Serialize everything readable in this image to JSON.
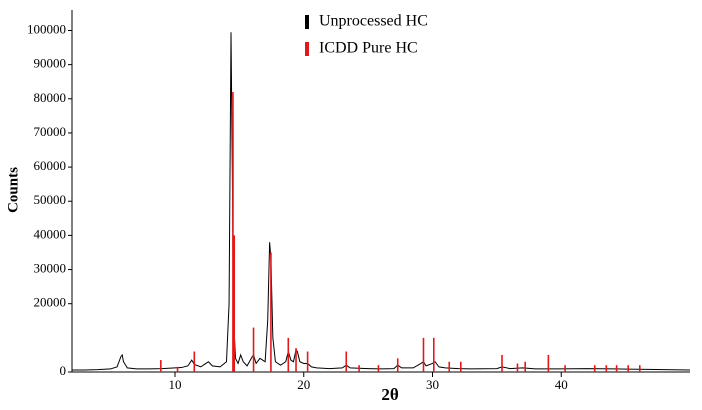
{
  "chart_data": {
    "type": "line",
    "x_label": "2θ",
    "y_label": "Counts",
    "xlim": [
      2,
      50
    ],
    "ylim": [
      0,
      106000
    ],
    "xticks": [
      10,
      20,
      30,
      40
    ],
    "yticks": [
      0,
      20000,
      30000,
      40000,
      50000,
      60000,
      70000,
      80000,
      90000,
      100000
    ],
    "legend": "top",
    "series": [
      {
        "name": "Unprocessed HC",
        "color": "#000000",
        "style": "line",
        "x": [
          2,
          3,
          4,
          5,
          5.5,
          5.8,
          5.9,
          6.0,
          6.3,
          7,
          8,
          9,
          9.5,
          10,
          10.5,
          11,
          11.3,
          11.5,
          12,
          12.4,
          12.6,
          12.9,
          13.5,
          14.0,
          14.2,
          14.35,
          14.45,
          14.55,
          14.7,
          14.9,
          15.1,
          15.3,
          15.6,
          16.0,
          16.1,
          16.3,
          16.6,
          16.8,
          17.0,
          17.2,
          17.35,
          17.45,
          17.6,
          17.8,
          18.2,
          18.6,
          18.8,
          19.0,
          19.2,
          19.4,
          19.5,
          19.7,
          20.0,
          20.3,
          20.6,
          21,
          22,
          23,
          23.3,
          23.6,
          25,
          26,
          27,
          27.3,
          27.6,
          28.5,
          29.1,
          29.3,
          29.5,
          30,
          30.2,
          30.5,
          31,
          32,
          33,
          35,
          35.4,
          36,
          37,
          38,
          40,
          42,
          44,
          46,
          48,
          50
        ],
        "values": [
          600,
          600,
          700,
          900,
          1500,
          4500,
          5000,
          3000,
          1200,
          900,
          900,
          1000,
          1100,
          1200,
          1300,
          1800,
          3500,
          2200,
          1500,
          2500,
          3000,
          1800,
          1500,
          3000,
          20000,
          99500,
          60000,
          15000,
          4000,
          2500,
          5000,
          3000,
          1800,
          4500,
          5000,
          2500,
          4000,
          3500,
          3000,
          15000,
          38000,
          33000,
          10000,
          3000,
          2000,
          3000,
          6000,
          3500,
          3000,
          6500,
          6000,
          3000,
          2500,
          2500,
          1500,
          1200,
          1000,
          1200,
          2000,
          1200,
          1000,
          900,
          1000,
          2000,
          1200,
          1200,
          2500,
          3000,
          1800,
          2500,
          3000,
          1500,
          1200,
          1000,
          900,
          1000,
          1500,
          1000,
          1200,
          900,
          900,
          1000,
          900,
          800,
          700,
          600
        ]
      },
      {
        "name": "ICDD Pure HC",
        "color": "#e0191b",
        "style": "stick",
        "x": [
          8.9,
          10.2,
          11.5,
          14.5,
          14.6,
          16.1,
          17.45,
          18.8,
          19.4,
          20.3,
          23.3,
          24.3,
          25.8,
          27.3,
          29.3,
          30.1,
          31.3,
          32.2,
          35.4,
          36.6,
          37.2,
          39.0,
          40.3,
          42.6,
          43.5,
          44.3,
          45.2,
          46.1
        ],
        "values": [
          3500,
          1500,
          6000,
          82000,
          40000,
          13000,
          35000,
          10000,
          7000,
          6000,
          6000,
          2000,
          2000,
          4000,
          10000,
          10000,
          3000,
          3000,
          5000,
          2500,
          3000,
          5000,
          2000,
          2000,
          2000,
          2000,
          2000,
          2000
        ]
      }
    ]
  }
}
